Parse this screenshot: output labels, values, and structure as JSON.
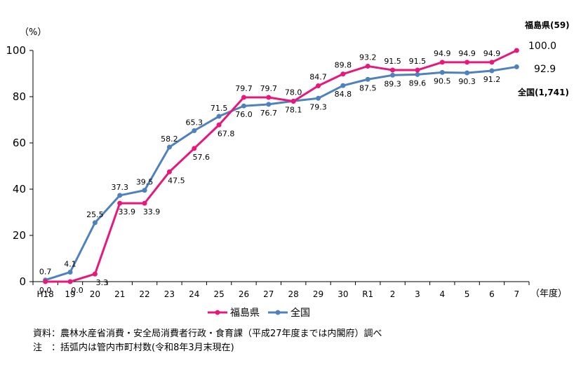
{
  "chart_data": {
    "type": "line",
    "ylabel": "（%）",
    "xlabel": "（年度）",
    "ylim": [
      0,
      100
    ],
    "yticks": [
      "0",
      "20",
      "40",
      "60",
      "80",
      "100"
    ],
    "categories": [
      "H18",
      "19",
      "20",
      "21",
      "22",
      "23",
      "24",
      "25",
      "26",
      "27",
      "28",
      "29",
      "30",
      "R1",
      "2",
      "3",
      "4",
      "5",
      "6",
      "7"
    ],
    "series": [
      {
        "name": "福島県",
        "color": "#e6197a",
        "values": [
          0.0,
          0.0,
          3.3,
          33.9,
          33.9,
          47.5,
          57.6,
          67.8,
          79.7,
          79.7,
          78.0,
          84.7,
          89.8,
          93.2,
          91.5,
          91.5,
          94.9,
          94.9,
          94.9,
          100.0
        ],
        "labels": [
          "0.0",
          "0.0",
          "3.3",
          "33.9",
          "33.9",
          "47.5",
          "57.6",
          "67.8",
          "79.7",
          "79.7",
          "78.0",
          "84.7",
          "89.8",
          "93.2",
          "91.5",
          "91.5",
          "94.9",
          "94.9",
          "94.9",
          "100.0"
        ],
        "end_note": "福島県(59)"
      },
      {
        "name": "全国",
        "color": "#4f81bd",
        "values": [
          0.7,
          4.1,
          25.5,
          37.3,
          39.5,
          58.2,
          65.3,
          71.5,
          76.0,
          76.7,
          78.1,
          79.3,
          84.8,
          87.5,
          89.3,
          89.6,
          90.5,
          90.3,
          91.2,
          92.9
        ],
        "labels": [
          "0.7",
          "4.1",
          "25.5",
          "37.3",
          "39.5",
          "58.2",
          "65.3",
          "71.5",
          "76.0",
          "76.7",
          "78.1",
          "79.3",
          "84.8",
          "87.5",
          "89.3",
          "89.6",
          "90.5",
          "90.3",
          "91.2",
          "92.9"
        ],
        "end_note": "全国(1,741)"
      }
    ],
    "legend": [
      "福島県",
      "全国"
    ],
    "legend_position": "bottom",
    "grid": false
  },
  "notes": {
    "source": "資料：農林水産省消費・安全局消費者行政・食育課（平成27年度までは内閣府）調べ",
    "remark": "注　：括弧内は管内市町村数(令和8年3月末現在)"
  }
}
